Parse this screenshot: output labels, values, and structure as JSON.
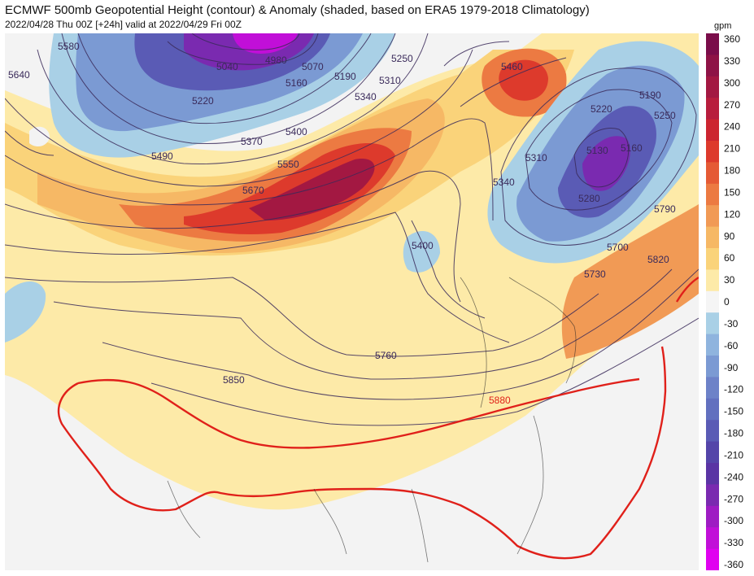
{
  "header": {
    "title": "ECMWF 500mb Geopotential Height (contour) & Anomaly (shaded, based on ERA5 1979-2018 Climatology)",
    "subtitle": "2022/04/28 Thu 00Z [+24h] valid at 2022/04/29 Fri 00Z"
  },
  "colorbar": {
    "unit": "gpm",
    "ticks": [
      "360",
      "330",
      "300",
      "270",
      "240",
      "210",
      "180",
      "150",
      "120",
      "90",
      "60",
      "30",
      "0",
      "-30",
      "-60",
      "-90",
      "-120",
      "-150",
      "-180",
      "-210",
      "-240",
      "-270",
      "-300",
      "-330",
      "-360"
    ],
    "colors": [
      "#7a0d4a",
      "#8e1346",
      "#a31842",
      "#b81d3d",
      "#cc2530",
      "#dd3a2c",
      "#e55a35",
      "#ec7a42",
      "#f19a55",
      "#f6b865",
      "#fad37a",
      "#fdeaa8",
      "#f5f5f5",
      "#a9d0e6",
      "#8fb4de",
      "#7b9ad3",
      "#6d82c8",
      "#6270bf",
      "#5a5bb5",
      "#5445a9",
      "#5a34a4",
      "#7a2ab0",
      "#9e1cc3",
      "#c10fd8",
      "#e000f0"
    ]
  },
  "contour_labels": [
    "4980",
    "5040",
    "5070",
    "5160",
    "5190",
    "5220",
    "5250",
    "5310",
    "5340",
    "5370",
    "5400",
    "5460",
    "5490",
    "5550",
    "5670",
    "5130",
    "5160",
    "5190",
    "5220",
    "5250",
    "5280",
    "5310",
    "5340",
    "5400",
    "5700",
    "5730",
    "5760",
    "5790",
    "5820",
    "5850",
    "5880",
    "5640",
    "5580"
  ],
  "legend_colors": {
    "ridge_line": "#e0201a",
    "contour_line": "#3a2a5a",
    "land_fill": "#f3f3f3"
  }
}
